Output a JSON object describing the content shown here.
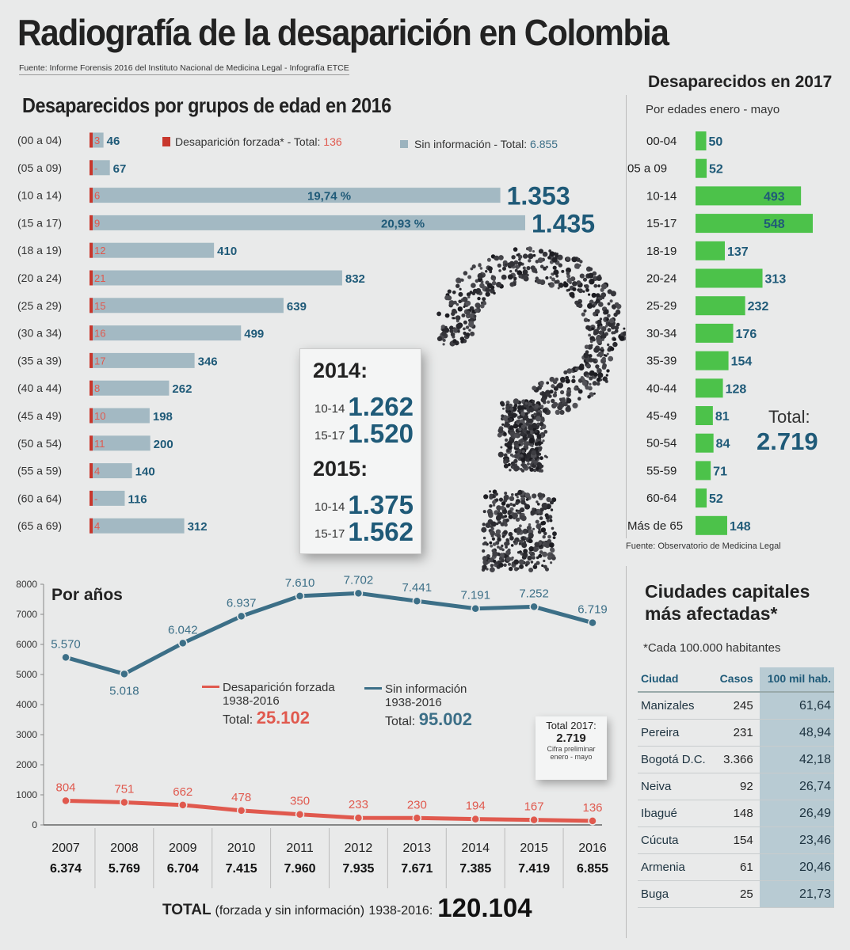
{
  "title": "Radiografía de la desaparición en Colombia",
  "source": "Fuente: Informe Forensis 2016 del Instituto Nacional de Medicina Legal - Infografía ETCE",
  "age_section": {
    "title": "Desaparecidos por grupos de edad en 2016",
    "legend_forced": "Desaparición forzada* - Total: ",
    "legend_forced_total": "136",
    "legend_sin": "Sin información - Total: ",
    "legend_sin_total": "6.855"
  },
  "box_previous": {
    "y2014_label": "2014:",
    "y2014_r1_label": "10-14",
    "y2014_r1_value": "1.262",
    "y2014_r2_label": "15-17",
    "y2014_r2_value": "1.520",
    "y2015_label": "2015:",
    "y2015_r1_label": "10-14",
    "y2015_r1_value": "1.375",
    "y2015_r2_label": "15-17",
    "y2015_r2_value": "1.562"
  },
  "right2017": {
    "title": "Desaparecidos en 2017",
    "subtitle": "Por edades enero - mayo",
    "total_label": "Total:",
    "total_value": "2.719",
    "source": "Fuente: Observatorio de Medicina Legal"
  },
  "years_section": {
    "title": "Por años",
    "legend_forced": "Desaparición forzada",
    "legend_forced_range": "1938-2016",
    "legend_forced_total_label": "Total:",
    "legend_forced_total": "25.102",
    "legend_sin": "Sin información",
    "legend_sin_range": "1938-2016",
    "legend_sin_total_label": "Total:",
    "legend_sin_total": "95.002",
    "total2017_l1": "Total 2017:",
    "total2017_l2": "2.719",
    "total2017_l3a": "Cifra preliminar",
    "total2017_l3b": "enero - mayo",
    "grand_total_label": "TOTAL",
    "grand_total_paren": "(forzada y sin información)",
    "grand_total_range": "1938-2016:",
    "grand_total_value": "120.104"
  },
  "cities": {
    "title_l1": "Ciudades capitales",
    "title_l2": "más afectadas*",
    "note": "*Cada 100.000 habitantes",
    "headers": [
      "Ciudad",
      "Casos",
      "100 mil hab."
    ],
    "rows": [
      [
        "Manizales",
        "245",
        "61,64"
      ],
      [
        "Pereira",
        "231",
        "48,94"
      ],
      [
        "Bogotá D.C.",
        "3.366",
        "42,18"
      ],
      [
        "Neiva",
        "92",
        "26,74"
      ],
      [
        "Ibagué",
        "148",
        "26,49"
      ],
      [
        "Cúcuta",
        "154",
        "23,46"
      ],
      [
        "Armenia",
        "61",
        "20,46"
      ],
      [
        "Buga",
        "25",
        "21,73"
      ]
    ]
  },
  "chart_data": [
    {
      "type": "bar",
      "title": "Desaparecidos por grupos de edad en 2016",
      "categories": [
        "(00 a 04)",
        "(05 a 09)",
        "(10 a 14)",
        "(15 a 17)",
        "(18 a 19)",
        "(20 a 24)",
        "(25 a 29)",
        "(30 a 34)",
        "(35 a 39)",
        "(40 a 44)",
        "(45 a 49)",
        "(50 a 54)",
        "(55 a 59)",
        "(60 a 64)",
        "(65 a 69)"
      ],
      "series": [
        {
          "name": "Desaparición forzada",
          "values": [
            3,
            null,
            6,
            9,
            12,
            21,
            15,
            16,
            17,
            8,
            10,
            11,
            4,
            null,
            4
          ],
          "labels": [
            "3",
            "-",
            "6",
            "9",
            "12",
            "21",
            "15",
            "16",
            "17",
            "8",
            "10",
            "11",
            "4",
            "-",
            "4"
          ]
        },
        {
          "name": "Sin información",
          "values": [
            46,
            67,
            1353,
            1435,
            410,
            832,
            639,
            499,
            346,
            262,
            198,
            200,
            140,
            116,
            312
          ],
          "labels": [
            "46",
            "67",
            "1.353",
            "1.435",
            "410",
            "832",
            "639",
            "499",
            "346",
            "262",
            "198",
            "200",
            "140",
            "116",
            "312"
          ]
        }
      ],
      "annotations": [
        {
          "category": "(10 a 14)",
          "text": "19,74 %"
        },
        {
          "category": "(15 a 17)",
          "text": "20,93 %"
        }
      ],
      "xlim": [
        0,
        1500
      ]
    },
    {
      "type": "bar",
      "title": "Desaparecidos en 2017",
      "subtitle": "Por edades enero - mayo",
      "categories": [
        "00-04",
        "05 a 09",
        "10-14",
        "15-17",
        "18-19",
        "20-24",
        "25-29",
        "30-34",
        "35-39",
        "40-44",
        "45-49",
        "50-54",
        "55-59",
        "60-64",
        "Más de 65"
      ],
      "values": [
        50,
        52,
        493,
        548,
        137,
        313,
        232,
        176,
        154,
        128,
        81,
        84,
        71,
        52,
        148
      ],
      "labels": [
        "50",
        "52",
        "493",
        "548",
        "137",
        "313",
        "232",
        "176",
        "154",
        "128",
        "81",
        "84",
        "71",
        "52",
        "148"
      ],
      "xlim": [
        0,
        560
      ]
    },
    {
      "type": "line",
      "title": "Por años",
      "x": [
        "2007",
        "2008",
        "2009",
        "2010",
        "2011",
        "2012",
        "2013",
        "2014",
        "2015",
        "2016"
      ],
      "series": [
        {
          "name": "Sin información",
          "values": [
            5570,
            5018,
            6042,
            6937,
            7610,
            7702,
            7441,
            7191,
            7252,
            6719
          ],
          "labels": [
            "5.570",
            "5.018",
            "6.042",
            "6.937",
            "7.610",
            "7.702",
            "7.441",
            "7.191",
            "7.252",
            "6.719"
          ]
        },
        {
          "name": "Desaparición forzada",
          "values": [
            804,
            751,
            662,
            478,
            350,
            233,
            230,
            194,
            167,
            136
          ],
          "labels": [
            "804",
            "751",
            "662",
            "478",
            "350",
            "233",
            "230",
            "194",
            "167",
            "136"
          ]
        }
      ],
      "year_totals": [
        "6.374",
        "5.769",
        "6.704",
        "7.415",
        "7.960",
        "7.935",
        "7.671",
        "7.385",
        "7.419",
        "6.855"
      ],
      "yticks": [
        "8000",
        "7000",
        "6000",
        "5000",
        "4000",
        "3000",
        "2000",
        "1000",
        "0"
      ],
      "ylim": [
        0,
        8000
      ],
      "colors": {
        "sin": "#3c6f87",
        "forced": "#e0594e"
      }
    }
  ]
}
